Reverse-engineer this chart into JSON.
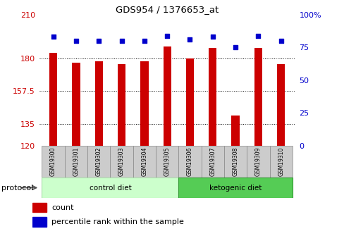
{
  "title": "GDS954 / 1376653_at",
  "samples": [
    "GSM19300",
    "GSM19301",
    "GSM19302",
    "GSM19303",
    "GSM19304",
    "GSM19305",
    "GSM19306",
    "GSM19307",
    "GSM19308",
    "GSM19309",
    "GSM19310"
  ],
  "counts": [
    184,
    177,
    178,
    176,
    178,
    188,
    180,
    187,
    141,
    187,
    176
  ],
  "percentile_ranks": [
    83,
    80,
    80,
    80,
    80,
    84,
    81,
    83,
    75,
    84,
    80
  ],
  "groups": [
    {
      "label": "control diet",
      "indices": [
        0,
        1,
        2,
        3,
        4,
        5
      ],
      "color": "#ccffcc",
      "border": "#aaddaa"
    },
    {
      "label": "ketogenic diet",
      "indices": [
        6,
        7,
        8,
        9,
        10
      ],
      "color": "#55cc55",
      "border": "#339933"
    }
  ],
  "ylim_left": [
    120,
    210
  ],
  "ylim_right": [
    0,
    100
  ],
  "yticks_left": [
    120,
    135,
    157.5,
    180,
    210
  ],
  "yticks_left_labels": [
    "120",
    "135",
    "157.5",
    "180",
    "210"
  ],
  "yticks_right": [
    0,
    25,
    50,
    75,
    100
  ],
  "yticks_right_labels": [
    "0",
    "25",
    "50",
    "75",
    "100%"
  ],
  "bar_color": "#cc0000",
  "dot_color": "#0000cc",
  "bar_width": 0.35,
  "background_color": "#ffffff",
  "plot_bg": "#ffffff",
  "ylabel_left_color": "#cc0000",
  "ylabel_right_color": "#0000cc",
  "protocol_label": "protocol",
  "legend_count_label": "count",
  "legend_pct_label": "percentile rank within the sample",
  "gridlines_at": [
    180,
    157.5,
    135
  ],
  "n_samples": 11,
  "control_count": 6,
  "ketogenic_count": 5
}
